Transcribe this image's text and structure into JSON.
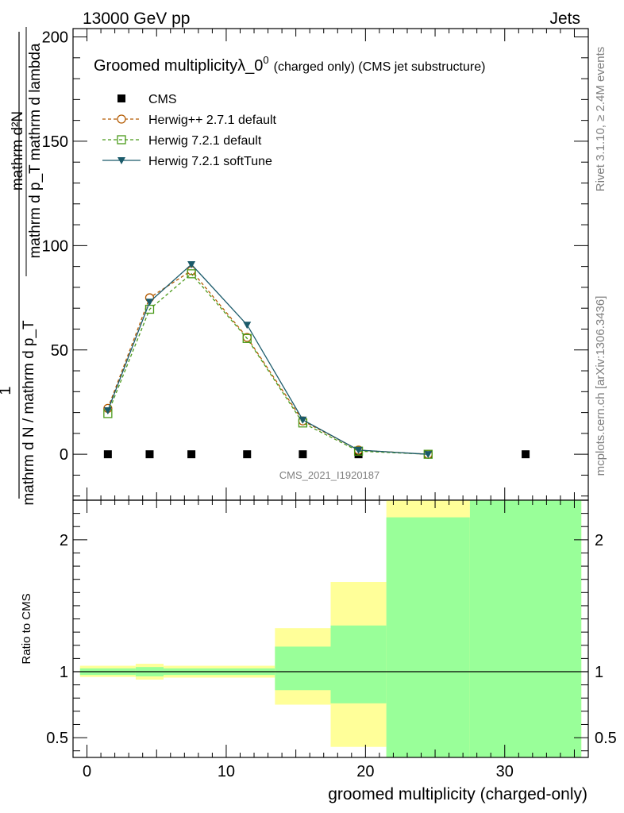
{
  "header": {
    "left": "13000 GeV pp",
    "right": "Jets"
  },
  "side_labels": {
    "rivet": "Rivet 3.1.10, ≥ 2.4M events",
    "mcplots": "mcplots.cern.ch [arXiv:1306.3436]"
  },
  "analysis_id": "CMS_2021_I1920187",
  "chart_data": [
    {
      "type": "line",
      "title": "Groomed multiplicityλ_0",
      "title_superscript": "0",
      "subtitle": "(charged only) (CMS jet substructure)",
      "ylabel": {
        "numerator": "1",
        "denominator": "mathrm d N / mathrm d p_T",
        "derivative_numerator": "mathrm d²N",
        "derivative_denominator": "mathrm d p_T mathrm d lambda"
      },
      "xlim": [
        -1,
        36
      ],
      "ylim": [
        -22,
        204
      ],
      "y_ticks": [
        0,
        50,
        100,
        150,
        200
      ],
      "legend_position": "top-left",
      "series": [
        {
          "name": "CMS",
          "color": "#000000",
          "marker": "square",
          "x": [
            1.5,
            4.5,
            7.5,
            11.5,
            15.5,
            19.5,
            24.5,
            31.5
          ],
          "y": [
            0,
            0,
            0,
            0,
            0,
            0,
            0,
            0
          ]
        },
        {
          "name": "Herwig++ 2.7.1 default",
          "color": "#b35a00",
          "marker": "circle-open",
          "dash": true,
          "x": [
            1.5,
            4.5,
            7.5,
            11.5,
            15.5,
            19.5,
            24.5
          ],
          "y": [
            22,
            75,
            88,
            56,
            16,
            2,
            0
          ]
        },
        {
          "name": "Herwig 7.2.1 default",
          "color": "#4a9a1a",
          "marker": "square-open",
          "dash": true,
          "x": [
            1.5,
            4.5,
            7.5,
            11.5,
            15.5,
            19.5,
            24.5
          ],
          "y": [
            19.5,
            69.5,
            86.5,
            55.5,
            15,
            1.5,
            0
          ]
        },
        {
          "name": "Herwig 7.2.1 softTune",
          "color": "#1a5a6a",
          "marker": "triangle-down",
          "dash": false,
          "x": [
            1.5,
            4.5,
            7.5,
            11.5,
            15.5,
            19.5,
            24.5
          ],
          "y": [
            21,
            73,
            91,
            62,
            16.5,
            2,
            0
          ]
        }
      ]
    },
    {
      "type": "area",
      "ylabel": "Ratio to CMS",
      "xlabel": "groomed multiplicity (charged-only)",
      "xlim": [
        -1,
        36
      ],
      "ylim": [
        0.35,
        2.3
      ],
      "x_ticks": [
        0,
        10,
        20,
        30
      ],
      "y_ticks": [
        0.5,
        1,
        2
      ],
      "reference_line": 1,
      "bands": [
        {
          "x": [
            -0.5,
            3.5
          ],
          "yellow": [
            0.96,
            1.045
          ],
          "green": [
            0.975,
            1.025
          ]
        },
        {
          "x": [
            3.5,
            5.5
          ],
          "yellow": [
            0.94,
            1.06
          ],
          "green": [
            0.965,
            1.035
          ]
        },
        {
          "x": [
            5.5,
            13.5
          ],
          "yellow": [
            0.955,
            1.045
          ],
          "green": [
            0.975,
            1.025
          ]
        },
        {
          "x": [
            13.5,
            17.5
          ],
          "yellow": [
            0.75,
            1.33
          ],
          "green": [
            0.86,
            1.19
          ]
        },
        {
          "x": [
            17.5,
            21.5
          ],
          "yellow": [
            0.43,
            1.68
          ],
          "green": [
            0.76,
            1.35
          ]
        },
        {
          "x": [
            21.5,
            27.5
          ],
          "yellow": [
            0.35,
            2.3
          ],
          "green": [
            0.35,
            2.17
          ]
        },
        {
          "x": [
            27.5,
            35.5
          ],
          "yellow": [
            0.35,
            2.3
          ],
          "green": [
            0.35,
            2.3
          ]
        }
      ],
      "colors": {
        "yellow": "#ffff99",
        "green": "#99ff99"
      }
    }
  ]
}
